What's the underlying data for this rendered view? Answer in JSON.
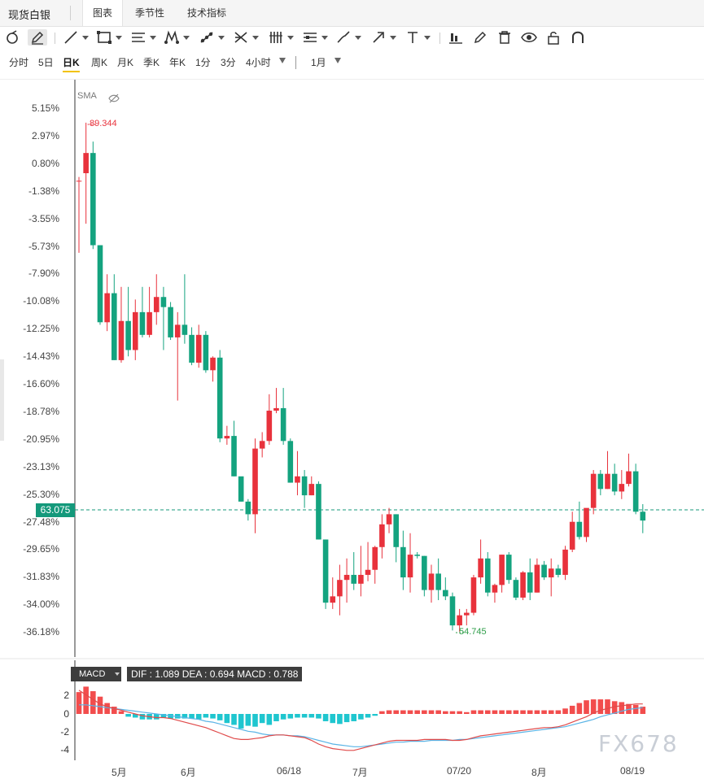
{
  "header": {
    "asset_name": "现货白银",
    "tabs": [
      {
        "label": "图表",
        "active": true
      },
      {
        "label": "季节性",
        "active": false
      },
      {
        "label": "技术指标",
        "active": false
      }
    ]
  },
  "toolbar": {
    "tools": [
      "magnet-icon",
      "pencil-icon",
      "line-icon",
      "rectangle-icon",
      "fib-icon",
      "pattern-icon",
      "trend-icon",
      "cross-icon",
      "bars-icon",
      "list-icon",
      "brush-icon",
      "arrow-icon",
      "text-icon",
      "measure-icon",
      "edit-icon",
      "trash-icon",
      "eye-icon",
      "lock-icon",
      "magnet-u-icon"
    ]
  },
  "periods": {
    "items": [
      "分时",
      "5日",
      "日K",
      "周K",
      "月K",
      "季K",
      "年K",
      "1分",
      "3分",
      "4小时"
    ],
    "active": "日K",
    "range": "1月"
  },
  "chart": {
    "indicator_label": "SMA",
    "max_label": "89.344",
    "min_label": "54.745",
    "current_price": "63.075",
    "y_ticks": [
      "5.15%",
      "2.97%",
      "0.80%",
      "-1.38%",
      "-3.55%",
      "-5.73%",
      "-7.90%",
      "-10.08%",
      "-12.25%",
      "-14.43%",
      "-16.60%",
      "-18.78%",
      "-20.95%",
      "-23.13%",
      "-25.30%",
      "-27.48%",
      "-29.65%",
      "-31.83%",
      "-34.00%",
      "-36.18%"
    ],
    "colors": {
      "up": "#e8323c",
      "down": "#14a37f"
    }
  },
  "macd": {
    "name": "MACD",
    "values_text": "DIF : 1.089   DEA : 0.694   MACD : 0.788",
    "y_ticks": [
      "2",
      "0",
      "-2",
      "-4"
    ],
    "colors": {
      "pos": "#f24d4d",
      "neg": "#1fc6cf",
      "dif": "#e04a4a",
      "dea": "#5ab4e6"
    }
  },
  "x_axis": [
    "5月",
    "6月",
    "06/18",
    "7月",
    "07/20",
    "8月",
    "08/19"
  ],
  "watermark": "FX678",
  "chart_data": {
    "type": "candlestick",
    "ylabel": "percent change",
    "ylim": [
      -37.5,
      6.2
    ],
    "ohlc_pct": [
      [
        -0.6,
        -0.3,
        -6.3,
        -0.6
      ],
      [
        0.0,
        4.0,
        -4.0,
        1.6
      ],
      [
        1.6,
        2.5,
        -6.0,
        -5.7
      ],
      [
        -5.7,
        -5.7,
        -12.0,
        -11.8
      ],
      [
        -11.8,
        -8.0,
        -12.5,
        -9.5
      ],
      [
        -9.5,
        -8.0,
        -14.8,
        -14.8
      ],
      [
        -14.8,
        -9.0,
        -15.0,
        -11.7
      ],
      [
        -11.7,
        -9.0,
        -14.5,
        -14.0
      ],
      [
        -14.0,
        -10.0,
        -14.8,
        -11.0
      ],
      [
        -11.0,
        -9.0,
        -13.0,
        -12.8
      ],
      [
        -12.8,
        -9.0,
        -13.0,
        -11.0
      ],
      [
        -11.0,
        -8.0,
        -12.0,
        -9.8
      ],
      [
        -9.8,
        -9.0,
        -14.0,
        -10.6
      ],
      [
        -10.6,
        -10.2,
        -13.2,
        -13.0
      ],
      [
        -13.0,
        -11.0,
        -18.0,
        -12.0
      ],
      [
        -12.0,
        -8.0,
        -13.5,
        -12.8
      ],
      [
        -12.8,
        -12.2,
        -15.2,
        -15.0
      ],
      [
        -15.0,
        -12.0,
        -15.4,
        -12.8
      ],
      [
        -12.8,
        -12.5,
        -15.8,
        -15.6
      ],
      [
        -15.6,
        -14.5,
        -16.5,
        -14.6
      ],
      [
        -14.6,
        -14.0,
        -21.3,
        -21.0
      ],
      [
        -21.0,
        -20.0,
        -21.5,
        -20.8
      ],
      [
        -20.8,
        -19.6,
        -24.0,
        -24.0
      ],
      [
        -24.0,
        -24.5,
        -26.0,
        -26.0
      ],
      [
        -26.0,
        -25.8,
        -27.5,
        -27.0
      ],
      [
        -27.0,
        -21.0,
        -28.5,
        -21.8
      ],
      [
        -21.8,
        -20.5,
        -22.5,
        -21.2
      ],
      [
        -21.2,
        -17.5,
        -21.5,
        -18.8
      ],
      [
        -18.8,
        -17.0,
        -19.0,
        -18.6
      ],
      [
        -18.6,
        -17.0,
        -21.5,
        -21.2
      ],
      [
        -21.2,
        -21.0,
        -24.5,
        -24.5
      ],
      [
        -24.5,
        -22.0,
        -25.5,
        -24.0
      ],
      [
        -24.0,
        -23.5,
        -26.5,
        -25.5
      ],
      [
        -25.5,
        -24.0,
        -25.5,
        -24.6
      ],
      [
        -24.6,
        -24.4,
        -29.0,
        -29.0
      ],
      [
        -29.0,
        -29.0,
        -34.5,
        -34.0
      ],
      [
        -34.0,
        -32.0,
        -34.5,
        -33.5
      ],
      [
        -33.5,
        -31.0,
        -35.0,
        -32.2
      ],
      [
        -32.2,
        -30.5,
        -34.0,
        -31.8
      ],
      [
        -31.8,
        -30.0,
        -33.0,
        -32.5
      ],
      [
        -32.5,
        -29.5,
        -33.5,
        -31.8
      ],
      [
        -31.8,
        -29.2,
        -32.3,
        -31.4
      ],
      [
        -31.4,
        -29.5,
        -32.5,
        -29.6
      ],
      [
        -29.6,
        -27.0,
        -30.5,
        -27.8
      ],
      [
        -27.8,
        -26.5,
        -28.5,
        -27.0
      ],
      [
        -27.0,
        -27.0,
        -30.8,
        -29.6
      ],
      [
        -29.6,
        -28.3,
        -33.0,
        -32.0
      ],
      [
        -32.0,
        -28.5,
        -33.2,
        -30.2
      ],
      [
        -30.2,
        -30.0,
        -30.5,
        -30.3
      ],
      [
        -30.3,
        -30.3,
        -33.5,
        -33.0
      ],
      [
        -33.0,
        -31.0,
        -34.0,
        -31.7
      ],
      [
        -31.7,
        -30.5,
        -33.8,
        -33.0
      ],
      [
        -33.0,
        -32.0,
        -33.8,
        -33.5
      ],
      [
        -33.5,
        -33.2,
        -36.2,
        -35.8
      ],
      [
        -35.8,
        -34.5,
        -36.3,
        -35.0
      ],
      [
        -35.0,
        -34.5,
        -35.8,
        -34.8
      ],
      [
        -34.8,
        -31.8,
        -35.0,
        -32.0
      ],
      [
        -32.0,
        -29.0,
        -32.5,
        -30.5
      ],
      [
        -30.5,
        -30.0,
        -33.5,
        -33.2
      ],
      [
        -33.2,
        -32.5,
        -34.0,
        -32.6
      ],
      [
        -32.6,
        -30.2,
        -33.2,
        -30.2
      ],
      [
        -30.2,
        -30.0,
        -32.5,
        -32.2
      ],
      [
        -32.2,
        -32.0,
        -33.8,
        -33.6
      ],
      [
        -33.6,
        -31.5,
        -33.8,
        -31.6
      ],
      [
        -31.6,
        -30.5,
        -33.8,
        -33.2
      ],
      [
        -33.2,
        -30.5,
        -33.2,
        -31.0
      ],
      [
        -31.0,
        -30.7,
        -32.2,
        -32.0
      ],
      [
        -32.0,
        -30.5,
        -33.5,
        -31.3
      ],
      [
        -31.3,
        -31.0,
        -32.0,
        -31.8
      ],
      [
        -31.8,
        -29.5,
        -32.2,
        -29.8
      ],
      [
        -29.8,
        -26.8,
        -30.0,
        -27.6
      ],
      [
        -27.6,
        -26.0,
        -29.0,
        -28.8
      ],
      [
        -28.8,
        -27.0,
        -29.2,
        -26.5
      ],
      [
        -26.5,
        -23.5,
        -27.0,
        -23.8
      ],
      [
        -23.8,
        -23.5,
        -25.5,
        -25.0
      ],
      [
        -25.0,
        -22.0,
        -25.0,
        -23.8
      ],
      [
        -23.8,
        -23.0,
        -25.5,
        -25.2
      ],
      [
        -25.2,
        -23.5,
        -25.8,
        -24.6
      ],
      [
        -24.6,
        -22.2,
        -24.8,
        -23.6
      ],
      [
        -23.6,
        -23.0,
        -27.0,
        -26.8
      ],
      [
        -26.8,
        -26.2,
        -28.5,
        -27.5
      ]
    ],
    "macd_hist": [
      2.4,
      3.0,
      2.5,
      1.9,
      1.2,
      0.8,
      0.3,
      -0.3,
      -0.4,
      -0.6,
      -0.6,
      -0.6,
      -0.4,
      -0.5,
      -0.5,
      -0.5,
      -0.5,
      -0.6,
      -0.4,
      -0.5,
      -0.7,
      -1.0,
      -1.2,
      -1.6,
      -1.3,
      -1.4,
      -1.0,
      -1.2,
      -0.8,
      -0.6,
      -0.5,
      -0.4,
      -0.4,
      -0.4,
      -0.5,
      -0.8,
      -1.0,
      -1.1,
      -0.9,
      -0.8,
      -0.6,
      -0.4,
      -0.2,
      0.3,
      0.4,
      0.4,
      0.4,
      0.4,
      0.4,
      0.4,
      0.4,
      0.4,
      0.3,
      0.3,
      0.3,
      0.2,
      0.4,
      0.4,
      0.4,
      0.4,
      0.4,
      0.4,
      0.4,
      0.4,
      0.4,
      0.4,
      0.4,
      0.4,
      0.4,
      0.6,
      0.9,
      1.2,
      1.5,
      1.6,
      1.6,
      1.6,
      1.4,
      1.3,
      1.1,
      1.0,
      0.8
    ],
    "dif": [
      2.6,
      2.1,
      1.6,
      1.1,
      0.8,
      0.6,
      0.4,
      0.2,
      0.0,
      -0.2,
      -0.3,
      -0.4,
      -0.4,
      -0.5,
      -0.7,
      -0.9,
      -1.1,
      -1.3,
      -1.5,
      -1.8,
      -2.1,
      -2.4,
      -2.7,
      -2.8,
      -2.8,
      -2.7,
      -2.6,
      -2.4,
      -2.3,
      -2.3,
      -2.4,
      -2.5,
      -2.6,
      -2.9,
      -3.3,
      -3.6,
      -3.8,
      -3.9,
      -4.0,
      -4.0,
      -3.8,
      -3.6,
      -3.4,
      -3.2,
      -3.0,
      -2.9,
      -2.9,
      -2.9,
      -2.9,
      -2.8,
      -2.8,
      -2.8,
      -2.8,
      -2.9,
      -2.9,
      -2.8,
      -2.6,
      -2.4,
      -2.3,
      -2.2,
      -2.1,
      -2.0,
      -1.9,
      -1.8,
      -1.7,
      -1.6,
      -1.5,
      -1.5,
      -1.4,
      -1.2,
      -0.9,
      -0.6,
      -0.3,
      0.1,
      0.4,
      0.6,
      0.8,
      0.9,
      1.0,
      1.1,
      1.1
    ],
    "dea": [
      1.0,
      1.0,
      0.9,
      0.8,
      0.7,
      0.6,
      0.5,
      0.4,
      0.3,
      0.2,
      0.1,
      0.0,
      -0.1,
      -0.2,
      -0.3,
      -0.4,
      -0.5,
      -0.6,
      -0.8,
      -0.9,
      -1.1,
      -1.3,
      -1.5,
      -1.7,
      -1.9,
      -2.0,
      -2.2,
      -2.3,
      -2.3,
      -2.3,
      -2.4,
      -2.4,
      -2.5,
      -2.7,
      -2.9,
      -3.1,
      -3.3,
      -3.4,
      -3.5,
      -3.6,
      -3.6,
      -3.5,
      -3.4,
      -3.3,
      -3.2,
      -3.1,
      -3.1,
      -3.0,
      -3.0,
      -3.0,
      -2.9,
      -2.9,
      -2.9,
      -2.9,
      -2.8,
      -2.8,
      -2.7,
      -2.6,
      -2.5,
      -2.4,
      -2.3,
      -2.2,
      -2.1,
      -2.0,
      -1.9,
      -1.8,
      -1.7,
      -1.6,
      -1.5,
      -1.4,
      -1.2,
      -1.0,
      -0.8,
      -0.6,
      -0.3,
      -0.1,
      0.1,
      0.3,
      0.5,
      0.6,
      0.7
    ]
  }
}
